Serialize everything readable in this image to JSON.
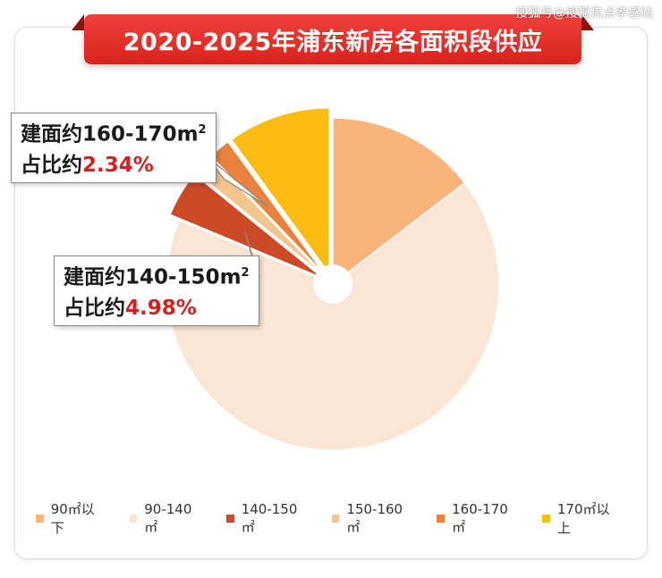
{
  "watermark": "搜狐号@搜狐焦点孝感站",
  "colors": {
    "title_bg": "#e32f27",
    "callout_highlight": "#d62020"
  },
  "callouts": [
    {
      "line1": "建面约160-170m",
      "sup": "2",
      "line2_prefix": "占比约",
      "line2_pct": "2.34%"
    },
    {
      "line1": "建面约140-150m",
      "sup": "2",
      "line2_prefix": "占比约",
      "line2_pct": "4.98%"
    }
  ],
  "chart_data": {
    "type": "pie",
    "title": "2020-2025年浦东新房各面积段供应",
    "donut": true,
    "categories": [
      "90㎡以下",
      "90-140㎡",
      "140-150㎡",
      "150-160㎡",
      "160-170㎡",
      "170㎡以上"
    ],
    "values": [
      16.0,
      73.2,
      4.98,
      2.2,
      2.34,
      11.0
    ],
    "colors": [
      "#f8b47a",
      "#fbe6d5",
      "#cc4a26",
      "#f3c58e",
      "#e9823d",
      "#fbbd12"
    ],
    "exploded": [
      false,
      false,
      true,
      true,
      true,
      true
    ],
    "annotations": [
      {
        "category": "160-170㎡",
        "text": "建面约160-170m2 占比约2.34%"
      },
      {
        "category": "140-150㎡",
        "text": "建面约140-150m2 占比约4.98%"
      }
    ],
    "legend_position": "bottom"
  }
}
